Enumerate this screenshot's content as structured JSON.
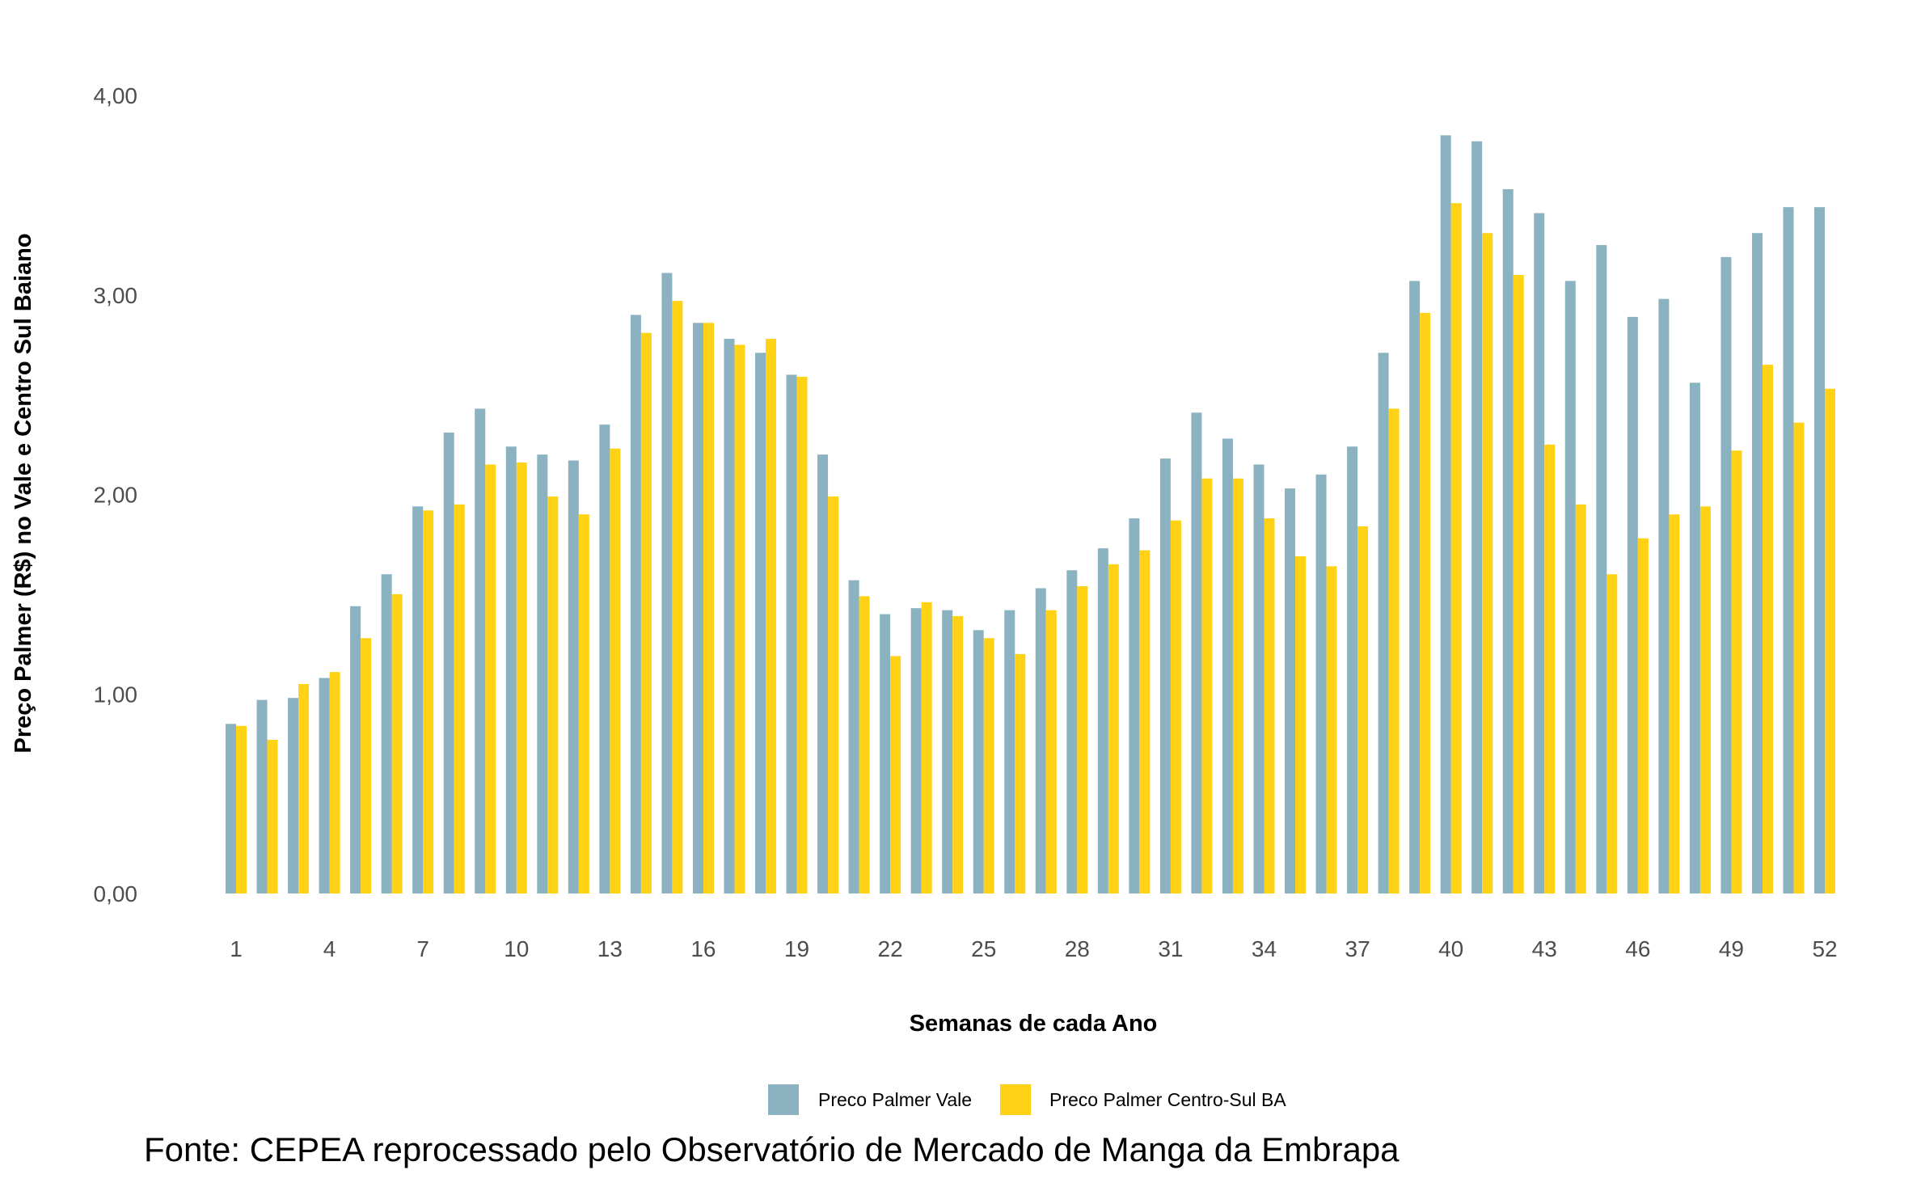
{
  "chart_data": {
    "type": "bar",
    "xlabel": "Semanas de cada Ano",
    "ylabel": "Preço Palmer (R$) no Vale e Centro Sul Baiano",
    "caption": "Fonte: CEPEA reprocessado pelo Observatório de Mercado de Manga da Embrapa",
    "ylim": [
      0,
      4
    ],
    "yticks": [
      0,
      1,
      2,
      3,
      4
    ],
    "ytick_labels": [
      "0,00",
      "1,00",
      "2,00",
      "3,00",
      "4,00"
    ],
    "xtick_labels": [
      "1",
      "4",
      "7",
      "10",
      "13",
      "16",
      "19",
      "22",
      "25",
      "28",
      "31",
      "34",
      "37",
      "40",
      "43",
      "46",
      "49",
      "52"
    ],
    "grid": false,
    "legend_position": "bottom",
    "categories": [
      1,
      2,
      3,
      4,
      5,
      6,
      7,
      8,
      9,
      10,
      11,
      12,
      13,
      14,
      15,
      16,
      17,
      18,
      19,
      20,
      21,
      22,
      23,
      24,
      25,
      26,
      27,
      28,
      29,
      30,
      31,
      32,
      33,
      34,
      35,
      36,
      37,
      38,
      39,
      40,
      41,
      42,
      43,
      44,
      45,
      46,
      47,
      48,
      49,
      50,
      51,
      52
    ],
    "series": [
      {
        "name": "Preco Palmer Vale",
        "color": "#8AB2C1",
        "values": [
          0.85,
          0.97,
          0.98,
          1.08,
          1.44,
          1.6,
          1.94,
          2.31,
          2.43,
          2.24,
          2.2,
          2.17,
          2.35,
          2.9,
          3.11,
          2.86,
          2.78,
          2.71,
          2.6,
          2.2,
          1.57,
          1.4,
          1.43,
          1.42,
          1.32,
          1.42,
          1.53,
          1.62,
          1.73,
          1.88,
          2.18,
          2.41,
          2.28,
          2.15,
          2.03,
          2.1,
          2.24,
          2.71,
          3.07,
          3.8,
          3.77,
          3.53,
          3.41,
          3.07,
          3.25,
          2.89,
          2.98,
          2.56,
          3.19,
          3.31,
          3.44,
          3.44
        ]
      },
      {
        "name": "Preco Palmer Centro-Sul BA",
        "color": "#FFD216",
        "values": [
          0.84,
          0.77,
          1.05,
          1.11,
          1.28,
          1.5,
          1.92,
          1.95,
          2.15,
          2.16,
          1.99,
          1.9,
          2.23,
          2.81,
          2.97,
          2.86,
          2.75,
          2.78,
          2.59,
          1.99,
          1.49,
          1.19,
          1.46,
          1.39,
          1.28,
          1.2,
          1.42,
          1.54,
          1.65,
          1.72,
          1.87,
          2.08,
          2.08,
          1.88,
          1.69,
          1.64,
          1.84,
          2.43,
          2.91,
          3.46,
          3.31,
          3.1,
          2.25,
          1.95,
          1.6,
          1.78,
          1.9,
          1.94,
          2.22,
          2.65,
          2.36,
          2.53
        ]
      }
    ]
  }
}
